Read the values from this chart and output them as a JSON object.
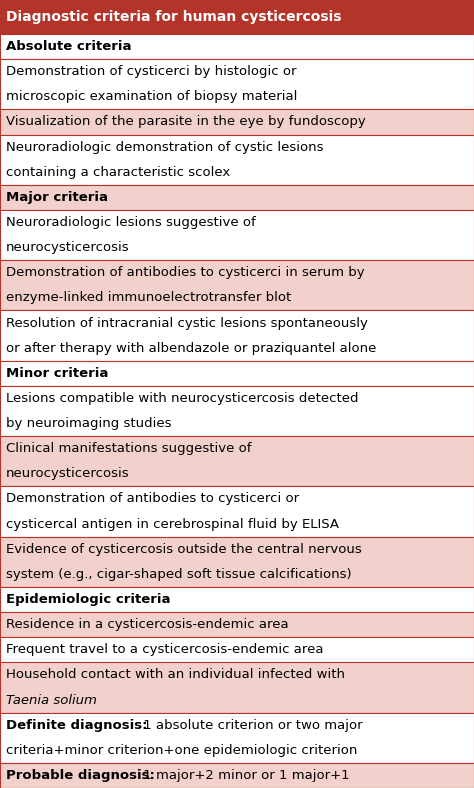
{
  "title": "Diagnostic criteria for human cysticercosis",
  "title_bg": "#b5342a",
  "title_color": "#ffffff",
  "rows": [
    {
      "segments": [
        {
          "text": "Absolute criteria",
          "bold": true,
          "italic": false
        }
      ],
      "bg": "#ffffff",
      "n_lines": 1
    },
    {
      "segments": [
        {
          "text": "Demonstration of cysticerci by histologic or\nmicroscopic examination of biopsy material",
          "bold": false,
          "italic": false
        }
      ],
      "bg": "#ffffff",
      "n_lines": 2
    },
    {
      "segments": [
        {
          "text": "Visualization of the parasite in the eye by fundoscopy",
          "bold": false,
          "italic": false
        }
      ],
      "bg": "#f2d0cc",
      "n_lines": 1
    },
    {
      "segments": [
        {
          "text": "Neuroradiologic demonstration of cystic lesions\ncontaining a characteristic scolex",
          "bold": false,
          "italic": false
        }
      ],
      "bg": "#ffffff",
      "n_lines": 2
    },
    {
      "segments": [
        {
          "text": "Major criteria",
          "bold": true,
          "italic": false
        }
      ],
      "bg": "#f2d0cc",
      "n_lines": 1
    },
    {
      "segments": [
        {
          "text": "Neuroradiologic lesions suggestive of\nneurocysticercosis",
          "bold": false,
          "italic": false
        }
      ],
      "bg": "#ffffff",
      "n_lines": 2
    },
    {
      "segments": [
        {
          "text": "Demonstration of antibodies to cysticerci in serum by\nenzyme-linked immunoelectrotransfer blot",
          "bold": false,
          "italic": false
        }
      ],
      "bg": "#f2d0cc",
      "n_lines": 2
    },
    {
      "segments": [
        {
          "text": "Resolution of intracranial cystic lesions spontaneously\nor after therapy with albendazole or praziquantel alone",
          "bold": false,
          "italic": false
        }
      ],
      "bg": "#ffffff",
      "n_lines": 2
    },
    {
      "segments": [
        {
          "text": "Minor criteria",
          "bold": true,
          "italic": false
        }
      ],
      "bg": "#ffffff",
      "n_lines": 1
    },
    {
      "segments": [
        {
          "text": "Lesions compatible with neurocysticercosis detected\nby neuroimaging studies",
          "bold": false,
          "italic": false
        }
      ],
      "bg": "#ffffff",
      "n_lines": 2
    },
    {
      "segments": [
        {
          "text": "Clinical manifestations suggestive of\nneurocysticercosis",
          "bold": false,
          "italic": false
        }
      ],
      "bg": "#f2d0cc",
      "n_lines": 2
    },
    {
      "segments": [
        {
          "text": "Demonstration of antibodies to cysticerci or\ncysticercal antigen in cerebrospinal fluid by ELISA",
          "bold": false,
          "italic": false
        }
      ],
      "bg": "#ffffff",
      "n_lines": 2
    },
    {
      "segments": [
        {
          "text": "Evidence of cysticercosis outside the central nervous\nsystem (e.g., cigar-shaped soft tissue calcifications)",
          "bold": false,
          "italic": false
        }
      ],
      "bg": "#f2d0cc",
      "n_lines": 2
    },
    {
      "segments": [
        {
          "text": "Epidemiologic criteria",
          "bold": true,
          "italic": false
        }
      ],
      "bg": "#ffffff",
      "n_lines": 1
    },
    {
      "segments": [
        {
          "text": "Residence in a cysticercosis-endemic area",
          "bold": false,
          "italic": false
        }
      ],
      "bg": "#f2d0cc",
      "n_lines": 1
    },
    {
      "segments": [
        {
          "text": "Frequent travel to a cysticercosis-endemic area",
          "bold": false,
          "italic": false
        }
      ],
      "bg": "#ffffff",
      "n_lines": 1
    },
    {
      "segments": [
        {
          "text": "Household contact with an individual infected with",
          "bold": false,
          "italic": false
        },
        {
          "text": "\nTaenia solium",
          "bold": false,
          "italic": true
        }
      ],
      "bg": "#f2d0cc",
      "n_lines": 2
    },
    {
      "segments": [
        {
          "text": "Definite diagnosis:",
          "bold": true,
          "italic": false
        },
        {
          "text": " 1 absolute criterion or two major\ncriteria+minor criterion+one epidemiologic criterion",
          "bold": false,
          "italic": false
        }
      ],
      "bg": "#ffffff",
      "n_lines": 2
    },
    {
      "segments": [
        {
          "text": "Probable diagnosis:",
          "bold": true,
          "italic": false
        },
        {
          "text": " 1 major+2 minor or 1 major+1",
          "bold": false,
          "italic": false
        }
      ],
      "bg": "#f2d0cc",
      "n_lines": 1
    }
  ],
  "text_color": "#000000",
  "border_color": "#b5342a",
  "font_size": 9.5,
  "title_font_size": 10.0,
  "figsize": [
    4.74,
    7.88
  ],
  "dpi": 100
}
